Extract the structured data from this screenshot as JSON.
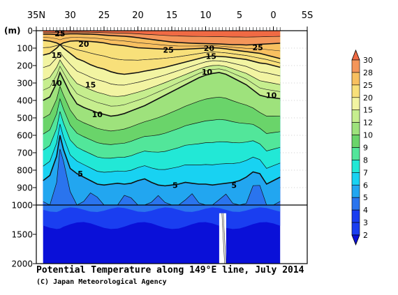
{
  "chart_data": {
    "type": "contour",
    "title": "Potential Temperature along 149°E line, July 2014",
    "credit": "(C) Japan Meteorological Agency",
    "ylabel": "(m)",
    "x_ticks": [
      "35N",
      "30",
      "25",
      "20",
      "15",
      "10",
      "5",
      "0",
      "5S"
    ],
    "x_tick_lat": [
      35,
      30,
      25,
      20,
      15,
      10,
      5,
      0,
      -5
    ],
    "xlim": [
      35,
      -5
    ],
    "y_ticks_upper": [
      "0",
      "100",
      "200",
      "300",
      "400",
      "500",
      "600",
      "700",
      "800",
      "900",
      "1000"
    ],
    "y_ticks_lower": [
      "1500",
      "2000"
    ],
    "depth_axis": {
      "upper_range": [
        0,
        1000
      ],
      "upper_step": 100,
      "lower_range": [
        1000,
        2000
      ],
      "break_depth": 1000
    },
    "data_extent_lat": [
      34,
      -1
    ],
    "colorbar_levels": [
      2,
      3,
      4,
      5,
      6,
      7,
      8,
      9,
      10,
      12,
      15,
      20,
      25,
      28,
      30
    ],
    "colorbar_labels": [
      "2",
      "3",
      "4",
      "5",
      "6",
      "7",
      "8",
      "9",
      "10",
      "12",
      "15",
      "20",
      "25",
      "28",
      "30"
    ],
    "band_colors": [
      "#0a10d8",
      "#1a3ef0",
      "#2a74ee",
      "#22a6f0",
      "#18d2f2",
      "#22e8d6",
      "#52e69a",
      "#6ad46a",
      "#9ee27c",
      "#c6ee8e",
      "#f2f4a2",
      "#f8e07a",
      "#f8c060",
      "#f4965a",
      "#f06a44"
    ],
    "contour_labels": [
      {
        "text": "25",
        "lat": 31.5,
        "depth": 15
      },
      {
        "text": "20",
        "lat": 28,
        "depth": 75
      },
      {
        "text": "15",
        "lat": 32,
        "depth": 140
      },
      {
        "text": "10",
        "lat": 32,
        "depth": 300
      },
      {
        "text": "15",
        "lat": 27,
        "depth": 310
      },
      {
        "text": "10",
        "lat": 26,
        "depth": 480
      },
      {
        "text": "5",
        "lat": 28.5,
        "depth": 820
      },
      {
        "text": "25",
        "lat": 15.5,
        "depth": 110
      },
      {
        "text": "20",
        "lat": 9.5,
        "depth": 100
      },
      {
        "text": "15",
        "lat": 9.2,
        "depth": 145
      },
      {
        "text": "10",
        "lat": 9.8,
        "depth": 235
      },
      {
        "text": "25",
        "lat": 2.3,
        "depth": 95
      },
      {
        "text": "10",
        "lat": 0.3,
        "depth": 370
      },
      {
        "text": "5",
        "lat": 14.5,
        "depth": 885
      },
      {
        "text": "5",
        "lat": 5.8,
        "depth": 885
      }
    ],
    "isotherm_depths": {
      "lats": [
        34,
        33,
        32,
        31.5,
        31,
        30,
        29,
        28,
        27,
        26,
        25,
        24,
        23,
        22,
        21,
        20,
        19,
        18,
        17,
        16,
        15,
        14,
        13,
        12,
        11,
        10,
        9,
        8,
        7,
        6,
        5,
        4,
        3,
        2,
        1,
        0,
        -1
      ],
      "t25": [
        20,
        20,
        22,
        25,
        20,
        18,
        18,
        19,
        20,
        22,
        25,
        28,
        30,
        32,
        35,
        40,
        45,
        50,
        55,
        60,
        65,
        68,
        70,
        72,
        73,
        74,
        75,
        76,
        78,
        80,
        80,
        82,
        80,
        78,
        76,
        74,
        72
      ],
      "t20": [
        55,
        60,
        70,
        80,
        70,
        60,
        58,
        60,
        62,
        65,
        70,
        78,
        82,
        86,
        92,
        98,
        100,
        102,
        104,
        106,
        108,
        108,
        106,
        104,
        102,
        100,
        98,
        100,
        104,
        110,
        115,
        120,
        125,
        130,
        140,
        150,
        160
      ],
      "t15": [
        140,
        130,
        100,
        80,
        100,
        130,
        160,
        175,
        195,
        210,
        220,
        235,
        245,
        250,
        245,
        240,
        232,
        225,
        218,
        210,
        200,
        190,
        180,
        170,
        160,
        150,
        145,
        148,
        150,
        155,
        160,
        165,
        175,
        185,
        190,
        200,
        210
      ],
      "t10": [
        400,
        380,
        300,
        240,
        280,
        360,
        420,
        440,
        455,
        470,
        480,
        490,
        485,
        475,
        460,
        445,
        430,
        410,
        390,
        370,
        350,
        330,
        310,
        290,
        270,
        255,
        245,
        240,
        250,
        270,
        290,
        310,
        340,
        370,
        380,
        385,
        390
      ],
      "t5": [
        860,
        830,
        720,
        600,
        680,
        790,
        820,
        840,
        860,
        880,
        885,
        880,
        875,
        880,
        875,
        860,
        850,
        870,
        885,
        890,
        885,
        880,
        870,
        875,
        880,
        880,
        885,
        880,
        875,
        870,
        860,
        840,
        810,
        820,
        880,
        860,
        840
      ]
    }
  }
}
